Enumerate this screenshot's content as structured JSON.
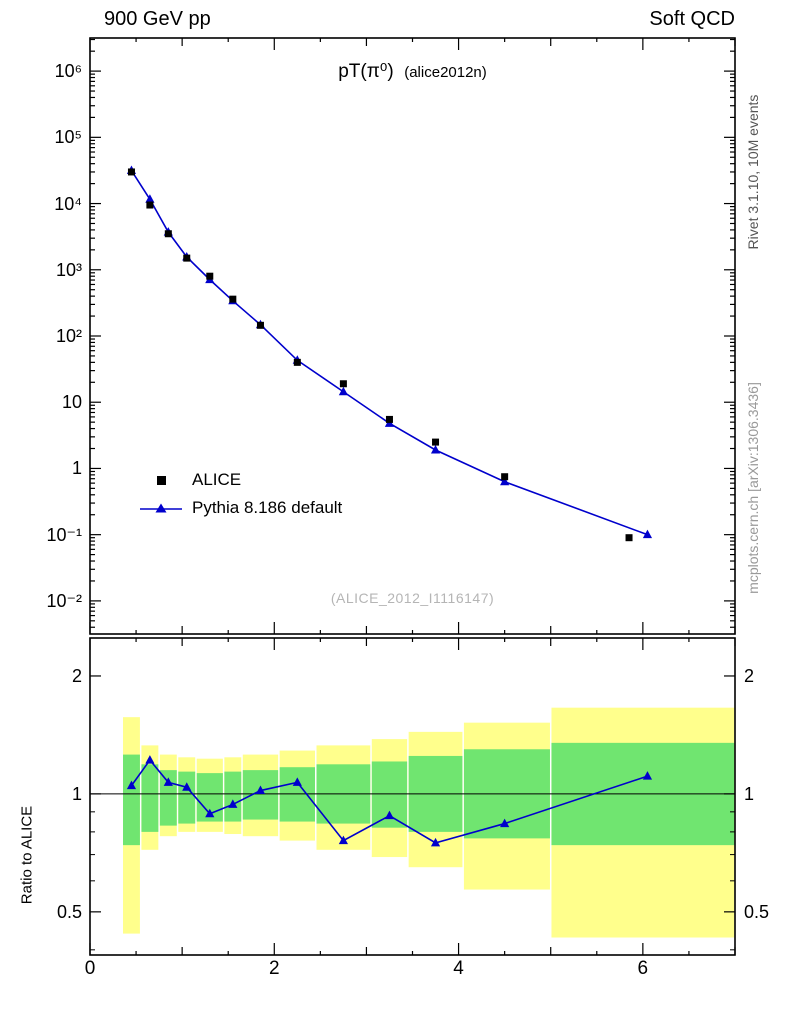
{
  "header": {
    "left": "900 GeV pp",
    "right": "Soft QCD"
  },
  "side_labels": {
    "top_right": "Rivet 3.1.10,  10M events",
    "bottom_right": "mcplots.cern.ch [arXiv:1306.3436]"
  },
  "main_panel": {
    "title_main": "pT(π⁰)",
    "title_note": "(alice2012n)",
    "watermark": "(ALICE_2012_I1116147)"
  },
  "ratio_panel": {
    "ylabel": "Ratio to ALICE"
  },
  "legend": [
    {
      "label": "ALICE",
      "marker": "black-square"
    },
    {
      "label": "Pythia 8.186 default",
      "marker": "blue-triangle-line"
    }
  ],
  "colors": {
    "data": "#000000",
    "mc": "#0000cc",
    "band_inner": "#70e570",
    "band_outer": "#ffff8c",
    "watermark": "#b5b5b5"
  },
  "chart_data": [
    {
      "type": "scatter",
      "title": "pT(π0) (alice2012n)",
      "yscale": "log",
      "xlim": [
        0,
        7
      ],
      "ylim_log10": [
        -2.5,
        6.5
      ],
      "legend_position": "left-middle",
      "series": [
        {
          "name": "ALICE",
          "marker": "square",
          "color": "#000000",
          "x": [
            0.45,
            0.65,
            0.85,
            1.05,
            1.3,
            1.55,
            1.85,
            2.25,
            2.75,
            3.25,
            3.75,
            4.5,
            5.85
          ],
          "y": [
            30000,
            9500,
            3500,
            1500,
            800,
            360,
            145,
            40,
            19,
            5.5,
            2.5,
            0.75,
            0.09
          ]
        },
        {
          "name": "Pythia 8.186 default",
          "marker": "triangle",
          "color": "#0000cc",
          "line": true,
          "x": [
            0.45,
            0.65,
            0.85,
            1.05,
            1.3,
            1.55,
            1.85,
            2.25,
            2.75,
            3.25,
            3.75,
            4.5,
            6.05
          ],
          "y": [
            31500,
            11600,
            3700,
            1560,
            710,
            340,
            148,
            43,
            14.4,
            4.8,
            1.9,
            0.63,
            0.1
          ]
        }
      ]
    },
    {
      "type": "ratio",
      "ylabel": "Ratio to ALICE",
      "yscale": "log",
      "xlim": [
        0,
        7
      ],
      "ylim": [
        0.388,
        2.5
      ],
      "yticks": [
        0.5,
        1,
        2
      ],
      "yticks_minor": [
        0.4,
        0.6,
        0.7,
        0.8,
        0.9
      ],
      "xticks": [
        0,
        2,
        4,
        6
      ],
      "reference_line": 1,
      "series": [
        {
          "name": "Pythia 8.186 default",
          "color": "#0000cc",
          "x": [
            0.45,
            0.65,
            0.85,
            1.05,
            1.3,
            1.55,
            1.85,
            2.25,
            2.75,
            3.25,
            3.75,
            4.5,
            6.05
          ],
          "y": [
            1.05,
            1.22,
            1.07,
            1.04,
            0.89,
            0.94,
            1.02,
            1.07,
            0.76,
            0.88,
            0.75,
            0.84,
            1.11
          ]
        }
      ],
      "bands": [
        {
          "x0": 0.35,
          "x1": 0.55,
          "inner_lo": 0.74,
          "inner_hi": 1.26,
          "outer_lo": 0.44,
          "outer_hi": 1.57
        },
        {
          "x0": 0.55,
          "x1": 0.75,
          "inner_lo": 0.8,
          "inner_hi": 1.19,
          "outer_lo": 0.72,
          "outer_hi": 1.33
        },
        {
          "x0": 0.75,
          "x1": 0.95,
          "inner_lo": 0.83,
          "inner_hi": 1.15,
          "outer_lo": 0.78,
          "outer_hi": 1.26
        },
        {
          "x0": 0.95,
          "x1": 1.15,
          "inner_lo": 0.84,
          "inner_hi": 1.14,
          "outer_lo": 0.8,
          "outer_hi": 1.24
        },
        {
          "x0": 1.15,
          "x1": 1.45,
          "inner_lo": 0.85,
          "inner_hi": 1.13,
          "outer_lo": 0.8,
          "outer_hi": 1.23
        },
        {
          "x0": 1.45,
          "x1": 1.65,
          "inner_lo": 0.85,
          "inner_hi": 1.14,
          "outer_lo": 0.79,
          "outer_hi": 1.24
        },
        {
          "x0": 1.65,
          "x1": 2.05,
          "inner_lo": 0.86,
          "inner_hi": 1.15,
          "outer_lo": 0.78,
          "outer_hi": 1.26
        },
        {
          "x0": 2.05,
          "x1": 2.45,
          "inner_lo": 0.85,
          "inner_hi": 1.17,
          "outer_lo": 0.76,
          "outer_hi": 1.29
        },
        {
          "x0": 2.45,
          "x1": 3.05,
          "inner_lo": 0.84,
          "inner_hi": 1.19,
          "outer_lo": 0.72,
          "outer_hi": 1.33
        },
        {
          "x0": 3.05,
          "x1": 3.45,
          "inner_lo": 0.82,
          "inner_hi": 1.21,
          "outer_lo": 0.69,
          "outer_hi": 1.38
        },
        {
          "x0": 3.45,
          "x1": 4.05,
          "inner_lo": 0.8,
          "inner_hi": 1.25,
          "outer_lo": 0.65,
          "outer_hi": 1.44
        },
        {
          "x0": 4.05,
          "x1": 5.0,
          "inner_lo": 0.77,
          "inner_hi": 1.3,
          "outer_lo": 0.57,
          "outer_hi": 1.52
        },
        {
          "x0": 5.0,
          "x1": 7.0,
          "inner_lo": 0.74,
          "inner_hi": 1.35,
          "outer_lo": 0.43,
          "outer_hi": 1.66
        }
      ]
    }
  ]
}
